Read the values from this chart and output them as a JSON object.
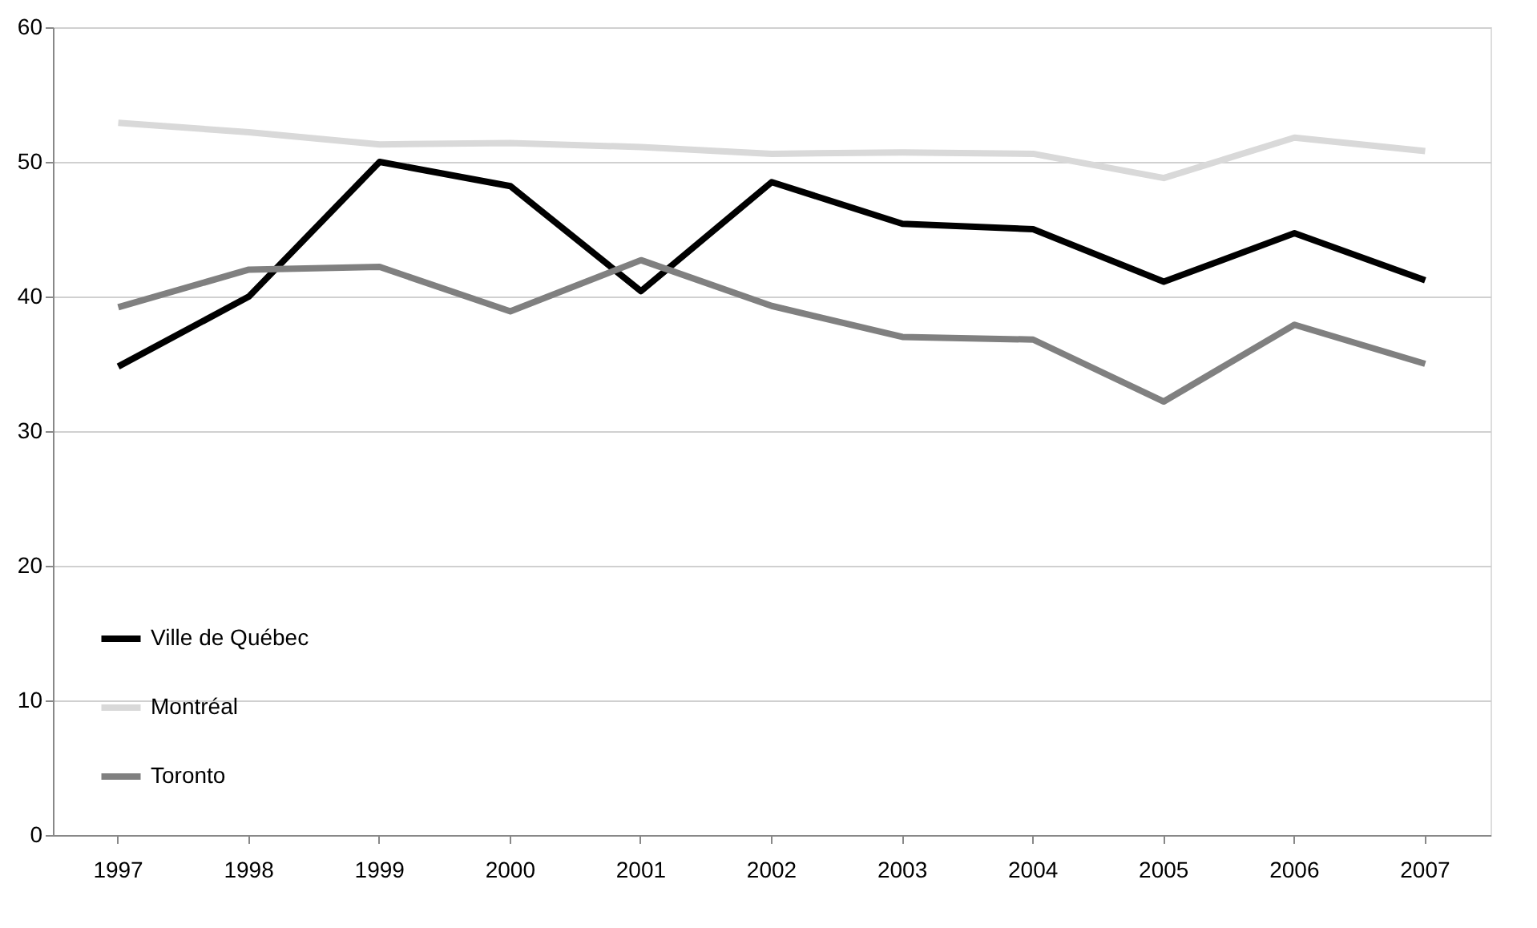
{
  "chart_data": {
    "type": "line",
    "categories": [
      "1997",
      "1998",
      "1999",
      "2000",
      "2001",
      "2002",
      "2003",
      "2004",
      "2005",
      "2006",
      "2007"
    ],
    "series": [
      {
        "name": "Ville de Québec",
        "color": "#000000",
        "values": [
          34.8,
          40.0,
          50.0,
          48.2,
          40.4,
          48.5,
          45.4,
          45.0,
          41.1,
          44.7,
          41.2
        ]
      },
      {
        "name": "Montréal",
        "color": "#d9d9d9",
        "values": [
          52.9,
          52.2,
          51.3,
          51.4,
          51.1,
          50.6,
          50.7,
          50.6,
          48.8,
          51.8,
          50.8
        ]
      },
      {
        "name": "Toronto",
        "color": "#808080",
        "values": [
          39.2,
          42.0,
          42.2,
          38.9,
          42.7,
          39.3,
          37.0,
          36.8,
          32.2,
          37.9,
          35.0
        ]
      }
    ],
    "ylim": [
      0,
      60
    ],
    "yticks": [
      0,
      10,
      20,
      30,
      40,
      50,
      60
    ],
    "grid": "y",
    "legend": "bottom left",
    "marker": "none",
    "line_style": "solid"
  }
}
